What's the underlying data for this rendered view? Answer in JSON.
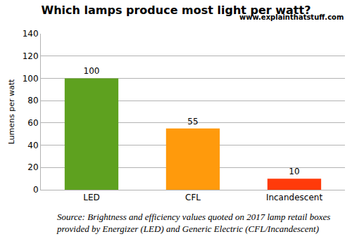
{
  "chart_data": {
    "type": "bar",
    "title": "Which lamps produce most light per watt?",
    "y_label": "Lumens per watt",
    "categories": [
      "LED",
      "CFL",
      "Incandescent"
    ],
    "values": [
      100,
      55,
      10
    ],
    "colors": [
      "#5ea11f",
      "#ff9a0c",
      "#ff3a0a"
    ],
    "ylim": [
      0,
      140
    ],
    "yticks": [
      0,
      20,
      40,
      60,
      80,
      100,
      120,
      140
    ],
    "grid": true,
    "data_labels": true,
    "annotations": [
      "www.explainthatstuff.com",
      "Source: Brightness and efficiency values quoted on 2017 lamp retail boxes\nprovided by Energizer (LED) and Generic Electric (CFL/Incandescent)"
    ]
  }
}
